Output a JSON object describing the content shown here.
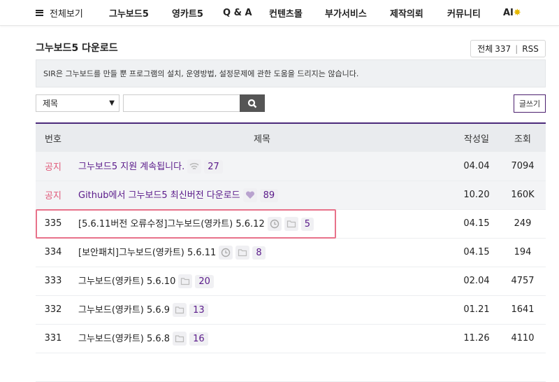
{
  "nav": {
    "all": "전체보기",
    "items": [
      "그누보드5",
      "영카트5",
      "Q & A",
      "컨텐츠몰",
      "부가서비스",
      "제작의뢰",
      "커뮤니티",
      "AI"
    ]
  },
  "board": {
    "title": "그누보드5 다운로드",
    "total_label": "전체",
    "total": "337",
    "rss": "RSS",
    "notice": "SIR은 그누보드를 만들 뿐 프로그램의 설치, 운영방법, 설정문제에 관한 도움을 드리지는 않습니다.",
    "search_field": "제목",
    "search_value": "",
    "write": "글쓰기"
  },
  "table": {
    "headers": [
      "번호",
      "제목",
      "작성일",
      "조회"
    ],
    "rows": [
      {
        "num": "공지",
        "subject": "그누보드5 지원 계속됩니다.",
        "icons": [
          "wifi-icon"
        ],
        "comments": "27",
        "date": "04.04",
        "hits": "7094",
        "notice": true
      },
      {
        "num": "공지",
        "subject": "Github에서 그누보드5 최신버전 다운로드",
        "icons": [
          "heart-icon"
        ],
        "comments": "89",
        "date": "10.20",
        "hits": "160K",
        "notice": true
      },
      {
        "num": "335",
        "subject": "[5.6.11버전 오류수정]그누보드(영카트) 5.6.12",
        "icons": [
          "clock-icon",
          "folder-icon"
        ],
        "comments": "5",
        "date": "04.15",
        "hits": "249"
      },
      {
        "num": "334",
        "subject": "[보안패치]그누보드(영카트) 5.6.11",
        "icons": [
          "clock-icon",
          "folder-icon"
        ],
        "comments": "8",
        "date": "04.15",
        "hits": "194"
      },
      {
        "num": "333",
        "subject": "그누보드(영카트) 5.6.10",
        "icons": [
          "folder-icon"
        ],
        "comments": "20",
        "date": "02.04",
        "hits": "4757"
      },
      {
        "num": "332",
        "subject": "그누보드(영카트) 5.6.9",
        "icons": [
          "folder-icon"
        ],
        "comments": "13",
        "date": "01.21",
        "hits": "1641"
      },
      {
        "num": "331",
        "subject": "그누보드(영카트) 5.6.8",
        "icons": [
          "folder-icon"
        ],
        "comments": "16",
        "date": "11.26",
        "hits": "4110"
      }
    ]
  },
  "colors": {
    "accent": "#4b2a7a",
    "notice_red": "#e05a7a",
    "highlight": "#e8728a"
  }
}
